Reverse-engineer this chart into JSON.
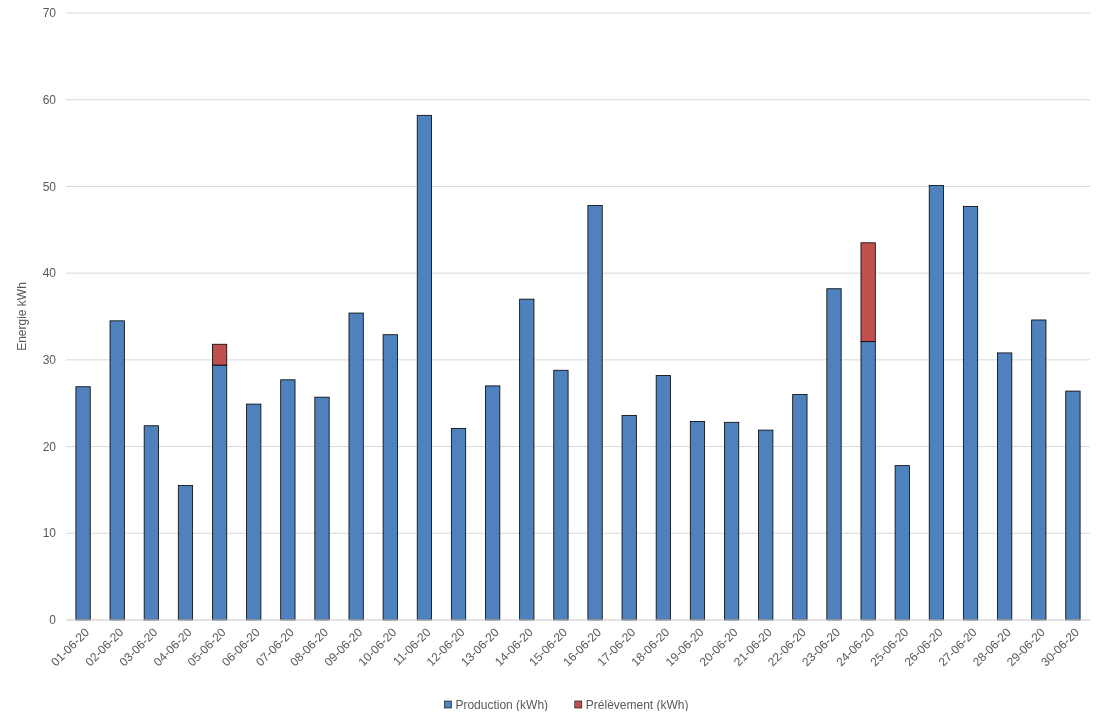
{
  "chart_data": {
    "type": "bar",
    "stacked": true,
    "ylabel": "Energie kWh",
    "categories": [
      "01-06-20",
      "02-06-20",
      "03-06-20",
      "04-06-20",
      "05-06-20",
      "06-06-20",
      "07-06-20",
      "08-06-20",
      "09-06-20",
      "10-06-20",
      "11-06-20",
      "12-06-20",
      "13-06-20",
      "14-06-20",
      "15-06-20",
      "16-06-20",
      "17-06-20",
      "18-06-20",
      "19-06-20",
      "20-06-20",
      "21-06-20",
      "22-06-20",
      "23-06-20",
      "24-06-20",
      "25-06-20",
      "26-06-20",
      "27-06-20",
      "28-06-20",
      "29-06-20",
      "30-06-20"
    ],
    "series": [
      {
        "name": "Production (kWh)",
        "color": "#4f81bd",
        "values": [
          26.9,
          34.5,
          22.4,
          15.5,
          29.4,
          24.9,
          27.7,
          25.7,
          35.4,
          32.9,
          58.2,
          22.1,
          27.0,
          37.0,
          28.8,
          47.8,
          23.6,
          28.2,
          22.9,
          22.8,
          21.9,
          26.0,
          38.2,
          32.1,
          17.8,
          50.1,
          47.7,
          30.8,
          34.6,
          26.4
        ]
      },
      {
        "name": "Prélèvement (kWh)",
        "color": "#c0504d",
        "values": [
          null,
          null,
          null,
          null,
          2.4,
          null,
          null,
          null,
          null,
          null,
          null,
          null,
          null,
          null,
          null,
          null,
          null,
          null,
          null,
          null,
          null,
          null,
          null,
          11.4,
          null,
          null,
          null,
          null,
          null,
          null
        ]
      }
    ],
    "ylim": [
      0,
      70
    ],
    "yticks": [
      0,
      10,
      20,
      30,
      40,
      50,
      60,
      70
    ],
    "grid": "y",
    "legend": "bottom"
  }
}
